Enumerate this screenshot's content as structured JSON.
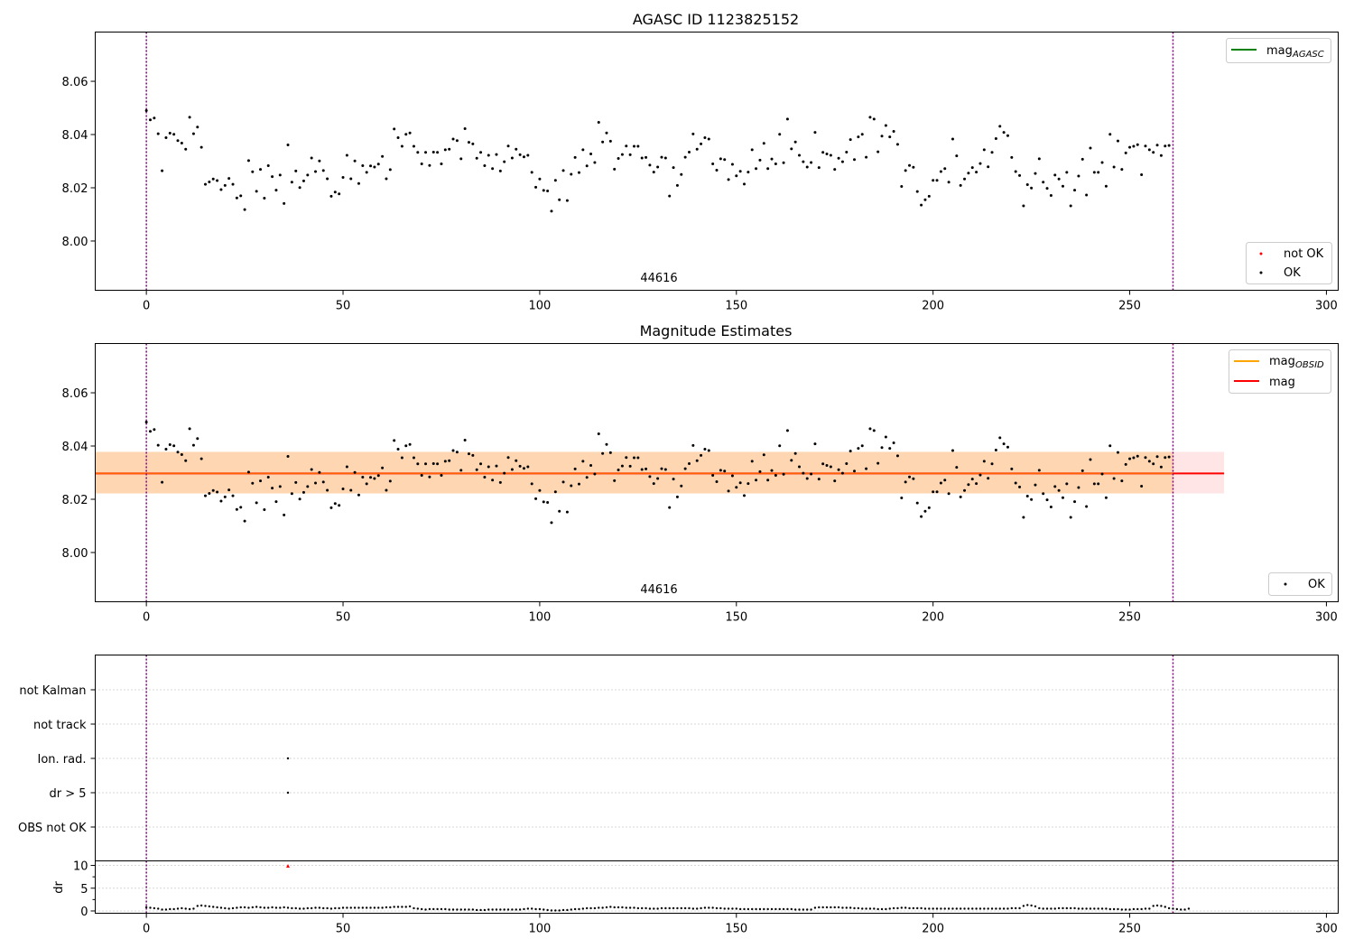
{
  "chart_data": [
    {
      "type": "scatter",
      "title": "AGASC ID 1123825152",
      "xlim": [
        -13,
        303
      ],
      "ylim": [
        7.9815,
        8.0785
      ],
      "xticks": [
        "0",
        "50",
        "100",
        "150",
        "200",
        "250",
        "300"
      ],
      "yticks": [
        "8.00",
        "8.02",
        "8.04",
        "8.06"
      ],
      "obsid_label": "44616",
      "vlines": [
        0,
        261
      ],
      "legend_upper": [
        {
          "label": "mag",
          "sub": "AGASC",
          "color": "#008000"
        }
      ],
      "legend_lower": [
        {
          "label": "not OK",
          "color": "#ff0000"
        },
        {
          "label": "OK",
          "color": "#000000"
        }
      ],
      "series": [
        {
          "name": "OK",
          "y": [
            8.049,
            8.0455,
            8.0462,
            8.0403,
            8.0264,
            8.0388,
            8.0405,
            8.0401,
            8.0377,
            8.0368,
            8.0345,
            8.0465,
            8.0403,
            8.0428,
            8.0352,
            8.0213,
            8.0222,
            8.0233,
            8.0227,
            8.0193,
            8.0209,
            8.0235,
            8.0213,
            8.0162,
            8.017,
            8.0118,
            8.0302,
            8.026,
            8.0187,
            8.0269,
            8.0161,
            8.0283,
            8.0242,
            8.0191,
            8.0248,
            8.0141,
            8.0361,
            8.0221,
            8.0263,
            8.0201,
            8.0226,
            8.0248,
            8.0312,
            8.0261,
            8.0301,
            8.0265,
            8.0234,
            8.0168,
            8.0184,
            8.0177,
            8.0239,
            8.0322,
            8.0234,
            8.0301,
            8.0216,
            8.0283,
            8.0258,
            8.0282,
            8.0278,
            8.0289,
            8.0318,
            8.0234,
            8.0268,
            8.0421,
            8.0388,
            8.0356,
            8.0401,
            8.0406,
            8.0356,
            8.0333,
            8.029,
            8.0333,
            8.0284,
            8.0334,
            8.0333,
            8.029,
            8.0343,
            8.0345,
            8.0383,
            8.0377,
            8.0309,
            8.0422,
            8.0371,
            8.0365,
            8.0311,
            8.0333,
            8.0283,
            8.0322,
            8.0272,
            8.0325,
            8.0263,
            8.0298,
            8.0357,
            8.0312,
            8.0345,
            8.0324,
            8.0316,
            8.0322,
            8.0258,
            8.0202,
            8.0233,
            8.019,
            8.0188,
            8.0112,
            8.0228,
            8.0155,
            8.0265,
            8.0152,
            8.0251,
            8.0314,
            8.0257,
            8.0343,
            8.0282,
            8.0327,
            8.0295,
            8.0446,
            8.0372,
            8.0406,
            8.0375,
            8.027,
            8.031,
            8.0325,
            8.0357,
            8.0324,
            8.0356,
            8.0356,
            8.0312,
            8.0314,
            8.0285,
            8.0259,
            8.0278,
            8.0315,
            8.0312,
            8.0169,
            8.0276,
            8.0209,
            8.025,
            8.0315,
            8.0334,
            8.0402,
            8.0345,
            8.0365,
            8.0388,
            8.0383,
            8.029,
            8.0266,
            8.0309,
            8.0306,
            8.0231,
            8.0288,
            8.0245,
            8.0262,
            8.0214,
            8.0259,
            8.0343,
            8.0272,
            8.0304,
            8.0367,
            8.0272,
            8.0308,
            8.029,
            8.0401,
            8.0294,
            8.0458,
            8.0346,
            8.0372,
            8.0322,
            8.0298,
            8.0278,
            8.0295,
            8.0408,
            8.0276,
            8.0333,
            8.0327,
            8.0322,
            8.0269,
            8.0311,
            8.0298,
            8.0334,
            8.0381,
            8.0306,
            8.0391,
            8.0401,
            8.0315,
            8.0465,
            8.0458,
            8.0335,
            8.0394,
            8.0434,
            8.0391,
            8.0412,
            8.0363,
            8.0205,
            8.0265,
            8.0284,
            8.0277,
            8.0186,
            8.0135,
            8.0155,
            8.0168,
            8.0228,
            8.0228,
            8.0261,
            8.0272,
            8.0221,
            8.0383,
            8.032,
            8.0209,
            8.0233,
            8.0255,
            8.0276,
            8.0259,
            8.0291,
            8.0343,
            8.0279,
            8.0333,
            8.0385,
            8.0431,
            8.0408,
            8.0396,
            8.0314,
            8.0261,
            8.0246,
            8.0132,
            8.0212,
            8.0199,
            8.0254,
            8.0309,
            8.0221,
            8.0198,
            8.0171,
            8.0248,
            8.0233,
            8.0206,
            8.0258,
            8.0132,
            8.0191,
            8.0244,
            8.0307,
            8.0173,
            8.0349,
            8.0258,
            8.0258,
            8.0295,
            8.0206,
            8.0401,
            8.0278,
            8.0376,
            8.0269,
            8.0331,
            8.0352,
            8.0356,
            8.0362,
            8.0249,
            8.0357,
            8.0343,
            8.0333,
            8.036,
            8.0321,
            8.0357,
            8.0359
          ]
        }
      ]
    },
    {
      "type": "scatter",
      "title": "Magnitude Estimates",
      "xlim": [
        -13,
        303
      ],
      "ylim": [
        7.9815,
        8.0785
      ],
      "xticks": [
        "0",
        "50",
        "100",
        "150",
        "200",
        "250",
        "300"
      ],
      "yticks": [
        "8.00",
        "8.02",
        "8.04",
        "8.06"
      ],
      "obsid_label": "44616",
      "vlines": [
        0,
        261
      ],
      "mag": 8.0297,
      "mag_band": [
        8.0222,
        8.0378
      ],
      "mag_band_x": [
        -13,
        274
      ],
      "obsid_band_x": [
        -13,
        261
      ],
      "legend_upper": [
        {
          "label": "mag",
          "sub": "OBSID",
          "color": "#ffa500"
        },
        {
          "label": "mag",
          "sub": "",
          "color": "#ff0000"
        }
      ],
      "legend_lower": [
        {
          "label": "OK",
          "color": "#000000"
        }
      ],
      "series": [
        {
          "name": "OK",
          "same_as": "AGASC ID 1123825152"
        }
      ]
    },
    {
      "type": "scatter",
      "xlim": [
        -13,
        303
      ],
      "xticks": [
        "0",
        "50",
        "100",
        "150",
        "200",
        "250",
        "300"
      ],
      "vlines": [
        0,
        261
      ],
      "flag_rows": [
        "not Kalman",
        "not track",
        "Ion. rad.",
        "dr > 5",
        "OBS not OK"
      ],
      "flag_points": [
        {
          "row": "Ion. rad.",
          "x": 36
        },
        {
          "row": "dr > 5",
          "x": 36
        }
      ],
      "dr_ylabel": "dr",
      "dr_ylim": [
        -0.5,
        11
      ],
      "dr_yticks": [
        "0",
        "5",
        "10"
      ],
      "dr_outlier": {
        "x": 36,
        "y": 9.8
      },
      "dr_values": [
        0.8,
        0.7,
        0.6,
        0.5,
        0.3,
        0.3,
        0.4,
        0.4,
        0.5,
        0.6,
        0.5,
        0.4,
        0.5,
        1.1,
        1.2,
        1.1,
        1.0,
        0.9,
        0.8,
        0.7,
        0.6,
        0.5,
        0.6,
        0.7,
        0.8,
        0.8,
        0.7,
        0.8,
        0.9,
        0.8,
        0.7,
        0.7,
        0.8,
        0.7,
        0.7,
        0.8,
        0.7,
        0.6,
        0.6,
        0.5,
        0.5,
        0.6,
        0.6,
        0.7,
        0.7,
        0.6,
        0.6,
        0.5,
        0.6,
        0.6,
        0.7,
        0.7,
        0.7,
        0.7,
        0.7,
        0.7,
        0.7,
        0.7,
        0.7,
        0.7,
        0.7,
        0.8,
        0.8,
        0.9,
        0.9,
        0.9,
        0.9,
        1.0,
        0.6,
        0.5,
        0.4,
        0.3,
        0.4,
        0.4,
        0.4,
        0.4,
        0.4,
        0.3,
        0.3,
        0.3,
        0.3,
        0.3,
        0.3,
        0.3,
        0.2,
        0.2,
        0.2,
        0.3,
        0.3,
        0.3,
        0.3,
        0.3,
        0.3,
        0.3,
        0.3,
        0.3,
        0.4,
        0.5,
        0.5,
        0.4,
        0.4,
        0.3,
        0.2,
        0.1,
        0.1,
        0.1,
        0.2,
        0.2,
        0.3,
        0.4,
        0.4,
        0.5,
        0.6,
        0.6,
        0.6,
        0.7,
        0.7,
        0.8,
        0.9,
        0.8,
        0.8,
        0.8,
        0.7,
        0.7,
        0.7,
        0.6,
        0.6,
        0.6,
        0.5,
        0.5,
        0.5,
        0.6,
        0.6,
        0.6,
        0.6,
        0.6,
        0.6,
        0.6,
        0.6,
        0.5,
        0.5,
        0.6,
        0.7,
        0.7,
        0.7,
        0.6,
        0.6,
        0.5,
        0.5,
        0.5,
        0.5,
        0.4,
        0.4,
        0.4,
        0.4,
        0.4,
        0.4,
        0.4,
        0.4,
        0.4,
        0.4,
        0.4,
        0.4,
        0.4,
        0.4,
        0.3,
        0.3,
        0.3,
        0.3,
        0.3,
        0.7,
        0.8,
        0.8,
        0.8,
        0.8,
        0.8,
        0.8,
        0.7,
        0.7,
        0.7,
        0.6,
        0.6,
        0.5,
        0.5,
        0.5,
        0.5,
        0.4,
        0.4,
        0.4,
        0.5,
        0.6,
        0.6,
        0.7,
        0.7,
        0.6,
        0.6,
        0.6,
        0.6,
        0.5,
        0.5,
        0.5,
        0.5,
        0.5,
        0.5,
        0.5,
        0.5,
        0.5,
        0.5,
        0.5,
        0.5,
        0.5,
        0.5,
        0.5,
        0.5,
        0.5,
        0.5,
        0.5,
        0.5,
        0.5,
        0.5,
        0.6,
        0.6,
        0.6,
        1.1,
        1.3,
        1.2,
        1.0,
        0.6,
        0.5,
        0.5,
        0.5,
        0.5,
        0.6,
        0.6,
        0.6,
        0.6,
        0.6,
        0.5,
        0.5,
        0.5,
        0.5,
        0.5,
        0.5,
        0.5,
        0.5,
        0.4,
        0.4,
        0.4,
        0.3,
        0.3,
        0.3,
        0.4,
        0.4,
        0.4,
        0.5,
        0.5,
        1.1,
        1.2,
        1.1,
        0.9,
        0.6,
        0.5,
        0.4,
        0.3,
        0.3,
        0.5
      ]
    }
  ]
}
